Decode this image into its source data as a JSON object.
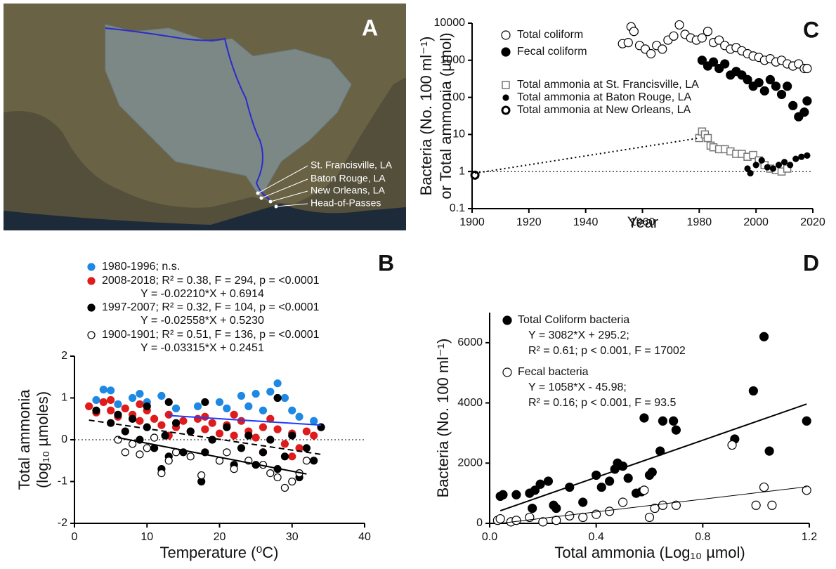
{
  "panel_a": {
    "label": "A",
    "sites": [
      "St. Francisville, LA",
      "Baton Rouge, LA",
      "New Orleans, LA",
      "Head-of-Passes"
    ]
  },
  "chart_data": [
    {
      "type": "scatter",
      "panel_label": "B",
      "x_label": "Temperature (⁰C)",
      "y_label": [
        "Total ammonia",
        "(log₁₀ µmoles)"
      ],
      "xlim": [
        0,
        40
      ],
      "xticks": [
        0,
        10,
        20,
        30,
        40
      ],
      "ylim": [
        -2,
        2
      ],
      "yticks": [
        -2,
        -1,
        0,
        1,
        2
      ],
      "hline": 0,
      "series": [
        {
          "name": "1980-1996; n.s.",
          "color": "#1e88e5",
          "marker": "filled",
          "x": [
            3,
            4,
            5,
            6,
            8,
            9,
            10,
            12,
            14,
            17,
            20,
            21,
            23,
            24,
            25,
            26,
            27,
            28,
            29,
            30,
            31,
            33
          ],
          "values": [
            0.95,
            1.2,
            1.18,
            0.85,
            1.0,
            1.1,
            0.9,
            1.05,
            0.75,
            0.8,
            0.9,
            0.75,
            1.05,
            0.8,
            1.1,
            0.7,
            1.15,
            1.35,
            1.0,
            0.7,
            0.55,
            0.45
          ]
        },
        {
          "name": "2008-2018; R² = 0.38, F = 294, p = <0.0001",
          "notes": [
            "Y = -0.02210*X + 0.6914"
          ],
          "color": "#e01b1b",
          "marker": "filled",
          "x": [
            2,
            3,
            4,
            5,
            6,
            7,
            8,
            9,
            10,
            11,
            12,
            13,
            14,
            15,
            16,
            17,
            18,
            19,
            20,
            21,
            22,
            23,
            24,
            25,
            26,
            27,
            28,
            29,
            30,
            31,
            32,
            33,
            34,
            5,
            9,
            13,
            18,
            22,
            27,
            30,
            26
          ],
          "values": [
            0.8,
            0.65,
            0.9,
            0.7,
            0.55,
            0.75,
            0.6,
            0.45,
            0.7,
            0.5,
            0.35,
            0.6,
            0.3,
            0.45,
            0.2,
            0.5,
            0.25,
            0.4,
            0.15,
            0.35,
            0.1,
            0.45,
            0.2,
            0.05,
            0.3,
            0.0,
            0.25,
            -0.1,
            0.15,
            -0.2,
            0.2,
            0.1,
            0.3,
            0.95,
            0.85,
            0.1,
            0.55,
            0.6,
            0.5,
            -0.4,
            -0.3
          ]
        },
        {
          "name": "1997-2007; R² = 0.32, F = 104, p = <0.0001",
          "notes": [
            "Y = -0.02558*X + 0.5230"
          ],
          "color": "#000000",
          "marker": "filled",
          "x": [
            3,
            5,
            6,
            7,
            8,
            9,
            10,
            11,
            12,
            12.5,
            13,
            14,
            15,
            16,
            17.5,
            18,
            19,
            20,
            21,
            22,
            23,
            24,
            25,
            26,
            27,
            28,
            29,
            30,
            31,
            32,
            33,
            34,
            13,
            18,
            28,
            10
          ],
          "values": [
            0.7,
            0.4,
            0.6,
            0.2,
            0.5,
            0.0,
            0.3,
            -0.2,
            -0.7,
            0.1,
            -0.4,
            0.4,
            -0.3,
            0.2,
            -1.0,
            -0.3,
            0.0,
            -0.5,
            0.3,
            -0.6,
            -0.2,
            0.1,
            -0.6,
            -0.3,
            0.0,
            -0.7,
            -0.4,
            0.1,
            -0.9,
            -0.2,
            -0.5,
            0.3,
            0.9,
            0.9,
            1.0,
            0.8
          ]
        },
        {
          "name": "1900-1901; R² = 0.51, F = 136, p = <0.0001",
          "notes": [
            "Y = -0.03315*X + 0.2451"
          ],
          "color": "#000000",
          "marker": "open",
          "x": [
            6,
            7,
            8,
            9,
            10,
            11,
            12,
            13,
            14,
            16,
            17.5,
            20,
            21,
            22,
            24,
            26,
            27,
            28,
            29,
            30,
            31,
            32
          ],
          "values": [
            0.0,
            -0.3,
            -0.1,
            -0.35,
            -0.2,
            0.05,
            -0.8,
            -0.5,
            -0.3,
            -0.4,
            -0.85,
            -0.5,
            -0.3,
            -0.7,
            -0.5,
            -0.6,
            -0.8,
            -0.9,
            -1.15,
            -1.0,
            -0.8,
            -0.5
          ]
        },
        {
          "type": "line",
          "color": "#1e3cff",
          "x": [
            13,
            34
          ],
          "values": [
            0.58,
            0.35
          ]
        },
        {
          "type": "line",
          "color": "#000000",
          "dash": "8 5",
          "x": [
            2,
            34
          ],
          "values": [
            0.47,
            -0.35
          ]
        },
        {
          "type": "line",
          "color": "#000000",
          "x": [
            6,
            32
          ],
          "values": [
            0.05,
            -0.82
          ]
        }
      ]
    },
    {
      "type": "scatter",
      "panel_label": "C",
      "x_label": "Year",
      "y_label": [
        "Bacteria (No. 100 ml⁻¹)",
        "or Total ammonia (µmol)"
      ],
      "xlim": [
        1900,
        2020
      ],
      "xticks": [
        1900,
        1920,
        1940,
        1960,
        1980,
        2000,
        2020
      ],
      "ylim": [
        0.1,
        10000
      ],
      "yticks": [
        0.1,
        1,
        10,
        100,
        1000,
        10000
      ],
      "log_y": true,
      "hline": 1,
      "series": [
        {
          "name": "Total coliform",
          "color": "#000000",
          "marker": "open",
          "x": [
            1953,
            1955,
            1956,
            1957,
            1959,
            1961,
            1963,
            1965,
            1967,
            1969,
            1971,
            1973,
            1975,
            1977,
            1979,
            1981,
            1983,
            1985,
            1987,
            1989,
            1991,
            1993,
            1995,
            1997,
            1999,
            2001,
            2003,
            2005,
            2007,
            2009,
            2011,
            2013,
            2015,
            2017,
            2018
          ],
          "values": [
            2800,
            3000,
            8000,
            6000,
            2500,
            2000,
            1500,
            2500,
            2000,
            3500,
            4500,
            9000,
            5000,
            4000,
            3500,
            4000,
            6000,
            3000,
            3500,
            2500,
            2000,
            2200,
            1800,
            1500,
            1300,
            1200,
            1000,
            1100,
            900,
            1000,
            800,
            700,
            800,
            600,
            600
          ]
        },
        {
          "name": "Fecal coliform",
          "color": "#000000",
          "marker": "filled",
          "x": [
            1981,
            1983,
            1985,
            1987,
            1989,
            1991,
            1993,
            1995,
            1997,
            1999,
            2001,
            2003,
            2005,
            2007,
            2009,
            2011,
            2013,
            2015,
            2017,
            2018
          ],
          "values": [
            1000,
            700,
            900,
            600,
            800,
            400,
            500,
            400,
            300,
            200,
            250,
            150,
            300,
            200,
            120,
            200,
            60,
            30,
            40,
            80
          ]
        },
        {
          "name": "Total ammonia at St. Francisville, LA",
          "color": "#777777",
          "marker": "square",
          "x": [
            1980,
            1981,
            1982,
            1983,
            1984,
            1985,
            1987,
            1989,
            1991,
            1993,
            1995,
            1997,
            1999,
            2001,
            2003,
            2005,
            2007,
            2009,
            2011
          ],
          "values": [
            8,
            12,
            10,
            8,
            5,
            4.5,
            4,
            4,
            3.5,
            3,
            3,
            2.5,
            2.8,
            2,
            1.5,
            1.2,
            1.1,
            1,
            1.2
          ]
        },
        {
          "name": "Total ammonia at Baton Rouge, LA",
          "color": "#000000",
          "marker": "dot",
          "x": [
            1997,
            1998,
            2000,
            2002,
            2004,
            2006,
            2008,
            2010,
            2012,
            2014,
            2016,
            2018
          ],
          "values": [
            1.2,
            0.9,
            1.5,
            2,
            1.3,
            1.2,
            1.5,
            1.8,
            1.5,
            2.2,
            2.5,
            2.7
          ]
        },
        {
          "name": "Total ammonia at New Orleans, LA",
          "color": "#000000",
          "marker": "open-bold",
          "x": [
            1901
          ],
          "values": [
            0.8
          ]
        },
        {
          "type": "line",
          "color": "#000000",
          "dash": "2 4",
          "x": [
            1901,
            1980
          ],
          "values": [
            0.9,
            8
          ]
        }
      ]
    },
    {
      "type": "scatter",
      "panel_label": "D",
      "x_label": "Total ammonia (Log₁₀ µmol)",
      "y_label": [
        "Bacteria (No. 100 ml⁻¹)"
      ],
      "xlim": [
        0,
        1.2
      ],
      "xticks": [
        {
          "value": 0,
          "label": "0.0"
        },
        0.4,
        0.8,
        1.2
      ],
      "ylim": [
        0,
        7000
      ],
      "yticks": [
        0,
        2000,
        4000,
        6000
      ],
      "series": [
        {
          "name": "Total Coliform bacteria",
          "notes": [
            "Y = 3082*X + 295.2;",
            "R² = 0.61; p < 0.001, F = 17002"
          ],
          "color": "#000000",
          "marker": "filled",
          "x": [
            0.04,
            0.05,
            0.1,
            0.15,
            0.17,
            0.19,
            0.22,
            0.24,
            0.25,
            0.3,
            0.4,
            0.42,
            0.45,
            0.47,
            0.48,
            0.5,
            0.52,
            0.55,
            0.57,
            0.58,
            0.6,
            0.61,
            0.64,
            0.65,
            0.69,
            0.7,
            0.92,
            0.99,
            1.03,
            1.05,
            1.19,
            0.35,
            0.16
          ],
          "values": [
            900,
            950,
            950,
            1000,
            1100,
            1300,
            1400,
            600,
            500,
            1200,
            1600,
            1200,
            1400,
            1800,
            2000,
            1900,
            1500,
            1000,
            1050,
            3500,
            1600,
            1700,
            2400,
            3400,
            3400,
            3100,
            2800,
            4400,
            6200,
            2400,
            3400,
            700,
            500
          ]
        },
        {
          "name": "Fecal bacteria",
          "notes": [
            "Y = 1058*X - 45.98;",
            "R² = 0.16; p < 0.001, F = 93.5"
          ],
          "color": "#000000",
          "marker": "open",
          "x": [
            0.03,
            0.04,
            0.08,
            0.1,
            0.15,
            0.2,
            0.25,
            0.3,
            0.35,
            0.4,
            0.45,
            0.5,
            0.6,
            0.62,
            0.65,
            0.7,
            0.91,
            1.0,
            1.03,
            1.06,
            1.19,
            0.58
          ],
          "values": [
            100,
            150,
            50,
            100,
            200,
            50,
            100,
            250,
            200,
            300,
            400,
            700,
            200,
            500,
            600,
            600,
            2600,
            600,
            1200,
            600,
            1100,
            1100
          ]
        },
        {
          "type": "line",
          "color": "#000000",
          "width": 2,
          "x": [
            0.04,
            1.19
          ],
          "values": [
            418,
            3963
          ]
        },
        {
          "type": "line",
          "color": "#000000",
          "width": 1,
          "x": [
            0.04,
            1.19
          ],
          "values": [
            0,
            1213
          ]
        }
      ]
    }
  ]
}
